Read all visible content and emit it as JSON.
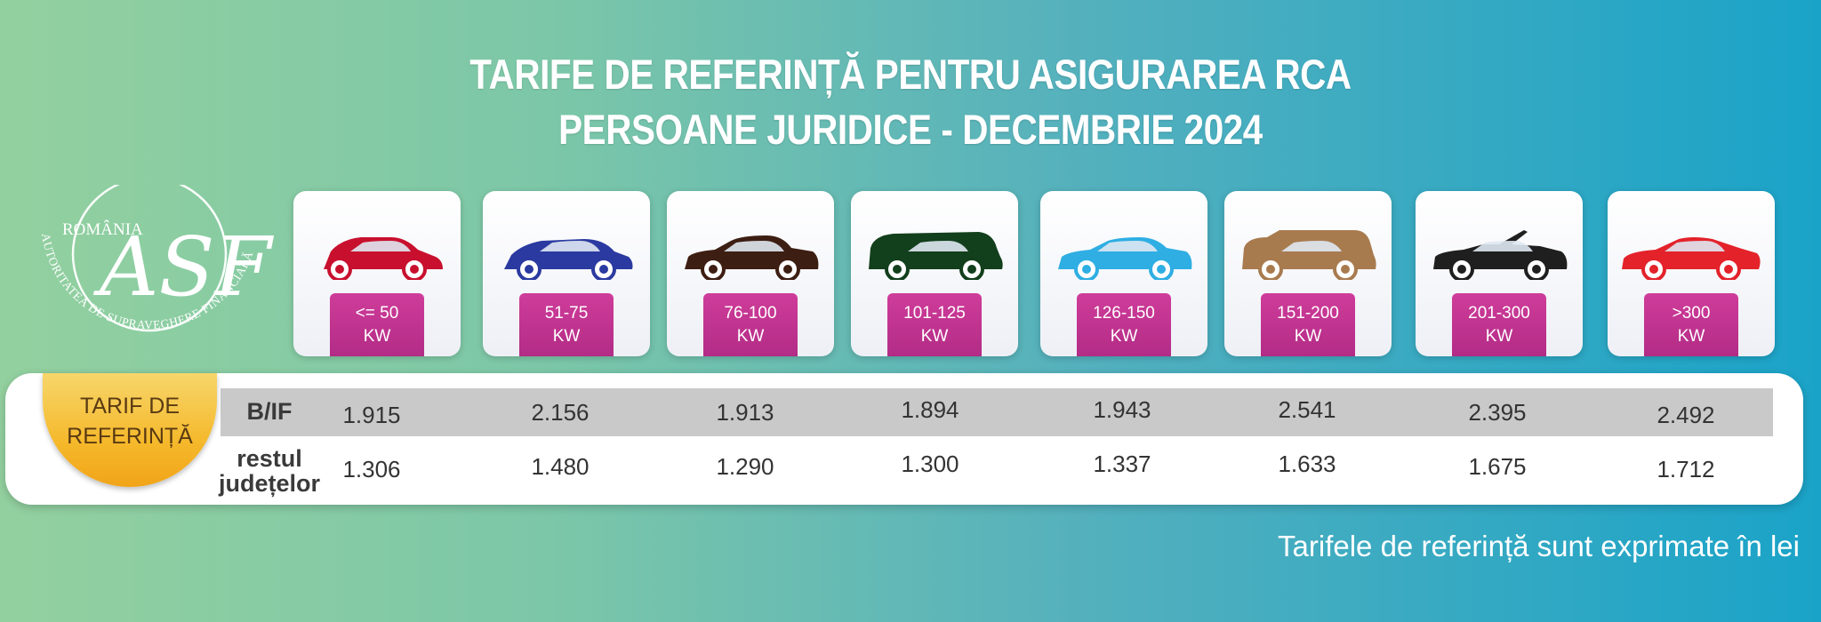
{
  "title": {
    "line1": "TARIFE DE REFERINȚĂ PENTRU ASIGURAREA RCA",
    "line2": "PERSOANE JURIDICE - DECEMBRIE 2024"
  },
  "logo": {
    "country": "ROMÂNIA",
    "monogram": "ASF",
    "authority": "AUTORITATEA DE SUPRAVEGHERE FINANCIARĂ"
  },
  "categories": [
    {
      "range": "<= 50",
      "unit": "KW",
      "car_color": "#c8102e",
      "bif": "1.915",
      "rest": "1.306"
    },
    {
      "range": "51-75",
      "unit": "KW",
      "car_color": "#2b3aa0",
      "bif": "2.156",
      "rest": "1.480"
    },
    {
      "range": "76-100",
      "unit": "KW",
      "car_color": "#3d1e12",
      "bif": "1.913",
      "rest": "1.290"
    },
    {
      "range": "101-125",
      "unit": "KW",
      "car_color": "#123f1c",
      "bif": "1.894",
      "rest": "1.300"
    },
    {
      "range": "126-150",
      "unit": "KW",
      "car_color": "#2eaee3",
      "bif": "1.943",
      "rest": "1.337"
    },
    {
      "range": "151-200",
      "unit": "KW",
      "car_color": "#a87b4f",
      "bif": "2.541",
      "rest": "1.633"
    },
    {
      "range": "201-300",
      "unit": "KW",
      "car_color": "#1f1f1f",
      "bif": "2.395",
      "rest": "1.675"
    },
    {
      "range": ">300",
      "unit": "KW",
      "car_color": "#e3222a",
      "bif": "2.492",
      "rest": "1.712"
    }
  ],
  "badge": {
    "line1": "TARIF DE",
    "line2": "REFERINȚĂ"
  },
  "rows": {
    "bif_label": "B/IF",
    "rest_label_1": "restul",
    "rest_label_2": "județelor"
  },
  "note": "Tarifele de referință sunt exprimate în lei"
}
